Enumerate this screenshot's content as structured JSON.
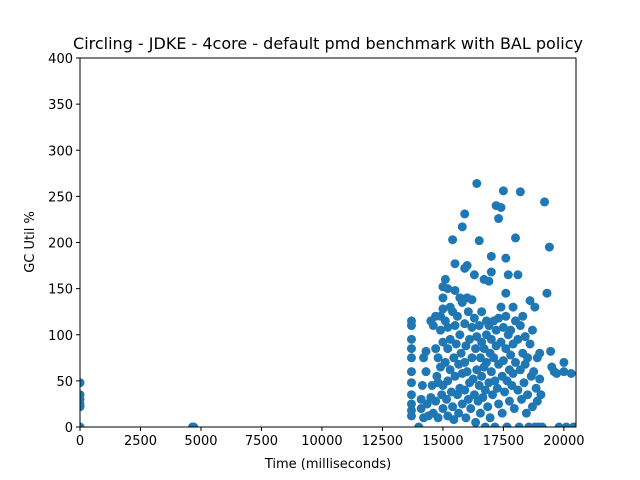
{
  "chart_data": {
    "type": "scatter",
    "title": "Circling - JDKE - 4core -  default pmd benchmark with BAL policy",
    "xlabel": "Time (milliseconds)",
    "ylabel": "GC Util %",
    "xlim": [
      0,
      20500
    ],
    "ylim": [
      0,
      400
    ],
    "xticks": [
      0,
      2500,
      5000,
      7500,
      10000,
      12500,
      15000,
      17500,
      20000
    ],
    "yticks": [
      0,
      50,
      100,
      150,
      200,
      250,
      300,
      350,
      400
    ],
    "grid": false,
    "legend": "none",
    "marker_color": "#1f77b4",
    "series": [
      {
        "points": [
          [
            0,
            48
          ],
          [
            0,
            35
          ],
          [
            0,
            30
          ],
          [
            0,
            25
          ],
          [
            0,
            22
          ],
          [
            0,
            0
          ],
          [
            4650,
            0
          ],
          [
            4700,
            0
          ],
          [
            13700,
            115
          ],
          [
            13700,
            110
          ],
          [
            13700,
            95
          ],
          [
            13700,
            85
          ],
          [
            13700,
            75
          ],
          [
            13700,
            60
          ],
          [
            13700,
            48
          ],
          [
            13700,
            35
          ],
          [
            13700,
            25
          ],
          [
            13700,
            18
          ],
          [
            13700,
            12
          ],
          [
            14000,
            0
          ],
          [
            14100,
            20
          ],
          [
            14100,
            30
          ],
          [
            14150,
            45
          ],
          [
            14200,
            75
          ],
          [
            14200,
            10
          ],
          [
            14300,
            82
          ],
          [
            14300,
            60
          ],
          [
            14350,
            25
          ],
          [
            14400,
            12
          ],
          [
            14500,
            115
          ],
          [
            14500,
            32
          ],
          [
            14550,
            45
          ],
          [
            14600,
            110
          ],
          [
            14600,
            15
          ],
          [
            14700,
            120
          ],
          [
            14700,
            85
          ],
          [
            14700,
            28
          ],
          [
            14750,
            55
          ],
          [
            14800,
            75
          ],
          [
            14800,
            48
          ],
          [
            14800,
            10
          ],
          [
            14900,
            120
          ],
          [
            14900,
            105
          ],
          [
            14900,
            65
          ],
          [
            14950,
            35
          ],
          [
            15000,
            152
          ],
          [
            15000,
            140
          ],
          [
            15000,
            128
          ],
          [
            15000,
            92
          ],
          [
            15000,
            45
          ],
          [
            15000,
            20
          ],
          [
            15100,
            160
          ],
          [
            15100,
            115
          ],
          [
            15100,
            70
          ],
          [
            15150,
            30
          ],
          [
            15200,
            150
          ],
          [
            15200,
            108
          ],
          [
            15200,
            85
          ],
          [
            15200,
            50
          ],
          [
            15200,
            12
          ],
          [
            15300,
            130
          ],
          [
            15300,
            95
          ],
          [
            15300,
            62
          ],
          [
            15350,
            38
          ],
          [
            15400,
            203
          ],
          [
            15400,
            125
          ],
          [
            15400,
            22
          ],
          [
            15450,
            75
          ],
          [
            15450,
            8
          ],
          [
            15500,
            177
          ],
          [
            15500,
            148
          ],
          [
            15500,
            110
          ],
          [
            15500,
            55
          ],
          [
            15550,
            90
          ],
          [
            15600,
            35
          ],
          [
            15600,
            120
          ],
          [
            15650,
            68
          ],
          [
            15650,
            15
          ],
          [
            15700,
            140
          ],
          [
            15700,
            100
          ],
          [
            15700,
            42
          ],
          [
            15750,
            80
          ],
          [
            15800,
            217
          ],
          [
            15800,
            135
          ],
          [
            15800,
            58
          ],
          [
            15800,
            25
          ],
          [
            15900,
            231
          ],
          [
            15900,
            172
          ],
          [
            15900,
            112
          ],
          [
            15900,
            70
          ],
          [
            15900,
            40
          ],
          [
            15950,
            88
          ],
          [
            15950,
            10
          ],
          [
            16000,
            175
          ],
          [
            16000,
            140
          ],
          [
            16000,
            60
          ],
          [
            16050,
            125
          ],
          [
            16050,
            30
          ],
          [
            16100,
            95
          ],
          [
            16100,
            48
          ],
          [
            16150,
            20
          ],
          [
            16200,
            138
          ],
          [
            16200,
            108
          ],
          [
            16200,
            75
          ],
          [
            16250,
            52
          ],
          [
            16300,
            165
          ],
          [
            16300,
            118
          ],
          [
            16300,
            35
          ],
          [
            16350,
            85
          ],
          [
            16350,
            5
          ],
          [
            16400,
            264
          ],
          [
            16400,
            98
          ],
          [
            16400,
            62
          ],
          [
            16450,
            28
          ],
          [
            16500,
            202
          ],
          [
            16500,
            110
          ],
          [
            16500,
            45
          ],
          [
            16550,
            75
          ],
          [
            16550,
            15
          ],
          [
            16600,
            125
          ],
          [
            16600,
            92
          ],
          [
            16600,
            55
          ],
          [
            16650,
            32
          ],
          [
            16700,
            160
          ],
          [
            16700,
            85
          ],
          [
            16700,
            65
          ],
          [
            16750,
            40
          ],
          [
            16750,
            0
          ],
          [
            16800,
            115
          ],
          [
            16800,
            100
          ],
          [
            16800,
            70
          ],
          [
            16850,
            22
          ],
          [
            16900,
            158
          ],
          [
            16900,
            110
          ],
          [
            16900,
            48
          ],
          [
            16950,
            80
          ],
          [
            16950,
            10
          ],
          [
            17000,
            185
          ],
          [
            17000,
            168
          ],
          [
            17000,
            95
          ],
          [
            17000,
            60
          ],
          [
            17050,
            35
          ],
          [
            17100,
            115
          ],
          [
            17100,
            75
          ],
          [
            17150,
            50
          ],
          [
            17150,
            0
          ],
          [
            17200,
            240
          ],
          [
            17200,
            105
          ],
          [
            17200,
            88
          ],
          [
            17250,
            42
          ],
          [
            17300,
            226
          ],
          [
            17300,
            118
          ],
          [
            17300,
            68
          ],
          [
            17300,
            25
          ],
          [
            17400,
            238
          ],
          [
            17400,
            130
          ],
          [
            17400,
            92
          ],
          [
            17450,
            55
          ],
          [
            17450,
            15
          ],
          [
            17500,
            256
          ],
          [
            17500,
            108
          ],
          [
            17500,
            72
          ],
          [
            17550,
            38
          ],
          [
            17600,
            183
          ],
          [
            17600,
            145
          ],
          [
            17600,
            120
          ],
          [
            17600,
            85
          ],
          [
            17650,
            50
          ],
          [
            17650,
            0
          ],
          [
            17700,
            165
          ],
          [
            17700,
            100
          ],
          [
            17750,
            62
          ],
          [
            17750,
            28
          ],
          [
            17800,
            105
          ],
          [
            17800,
            78
          ],
          [
            17850,
            45
          ],
          [
            17900,
            130
          ],
          [
            17900,
            90
          ],
          [
            17900,
            58
          ],
          [
            17950,
            20
          ],
          [
            18000,
            205
          ],
          [
            18000,
            115
          ],
          [
            18000,
            70
          ],
          [
            18100,
            165
          ],
          [
            18100,
            95
          ],
          [
            18100,
            40
          ],
          [
            18150,
            0
          ],
          [
            18200,
            255
          ],
          [
            18200,
            110
          ],
          [
            18200,
            62
          ],
          [
            18250,
            30
          ],
          [
            18300,
            120
          ],
          [
            18300,
            80
          ],
          [
            18350,
            48
          ],
          [
            18400,
            98
          ],
          [
            18400,
            68
          ],
          [
            18450,
            15
          ],
          [
            18500,
            75
          ],
          [
            18500,
            35
          ],
          [
            18550,
            0
          ],
          [
            18600,
            137
          ],
          [
            18600,
            90
          ],
          [
            18650,
            55
          ],
          [
            18700,
            105
          ],
          [
            18700,
            22
          ],
          [
            18750,
            60
          ],
          [
            18800,
            130
          ],
          [
            18800,
            0
          ],
          [
            18850,
            42
          ],
          [
            18900,
            75
          ],
          [
            18900,
            28
          ],
          [
            18950,
            0
          ],
          [
            19000,
            80
          ],
          [
            19000,
            52
          ],
          [
            19050,
            35
          ],
          [
            19100,
            0
          ],
          [
            19200,
            244
          ],
          [
            19300,
            145
          ],
          [
            19400,
            195
          ],
          [
            19450,
            82
          ],
          [
            19500,
            65
          ],
          [
            19600,
            60
          ],
          [
            19700,
            58
          ],
          [
            19800,
            0
          ],
          [
            20000,
            70
          ],
          [
            20000,
            60
          ],
          [
            20100,
            0
          ],
          [
            20300,
            58
          ],
          [
            20400,
            0
          ]
        ]
      }
    ]
  }
}
